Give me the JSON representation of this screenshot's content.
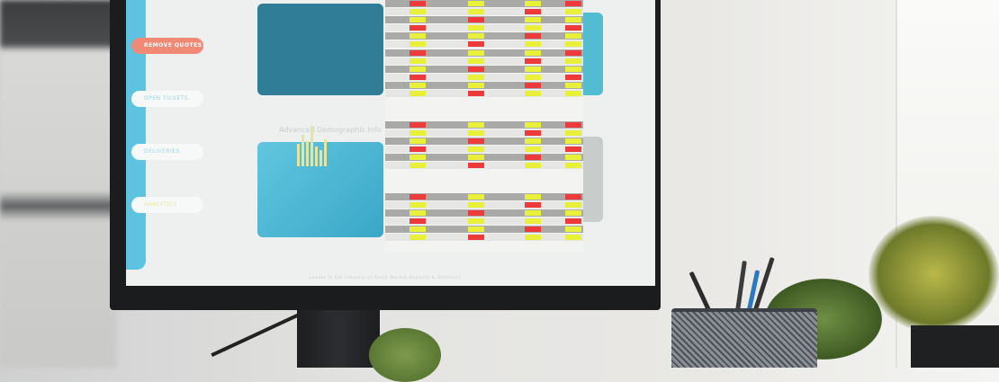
{
  "screen": {
    "nav": [
      {
        "label": "REMOVE QUOTES",
        "active": true
      },
      {
        "label": "OPEN TICKETS",
        "active": false
      },
      {
        "label": "DELIVERIES",
        "active": false
      },
      {
        "label": "ANALYTICS",
        "active": false
      }
    ],
    "section_heading": "Advanced Demographic Info",
    "tagline": "Leader in the industry of Stock Market Analysis & Statistics"
  },
  "colors": {
    "sidebar": "#5ec3e0",
    "active_button": "#f08a76",
    "gain": "#e8f03a",
    "loss": "#ee3a3a"
  }
}
